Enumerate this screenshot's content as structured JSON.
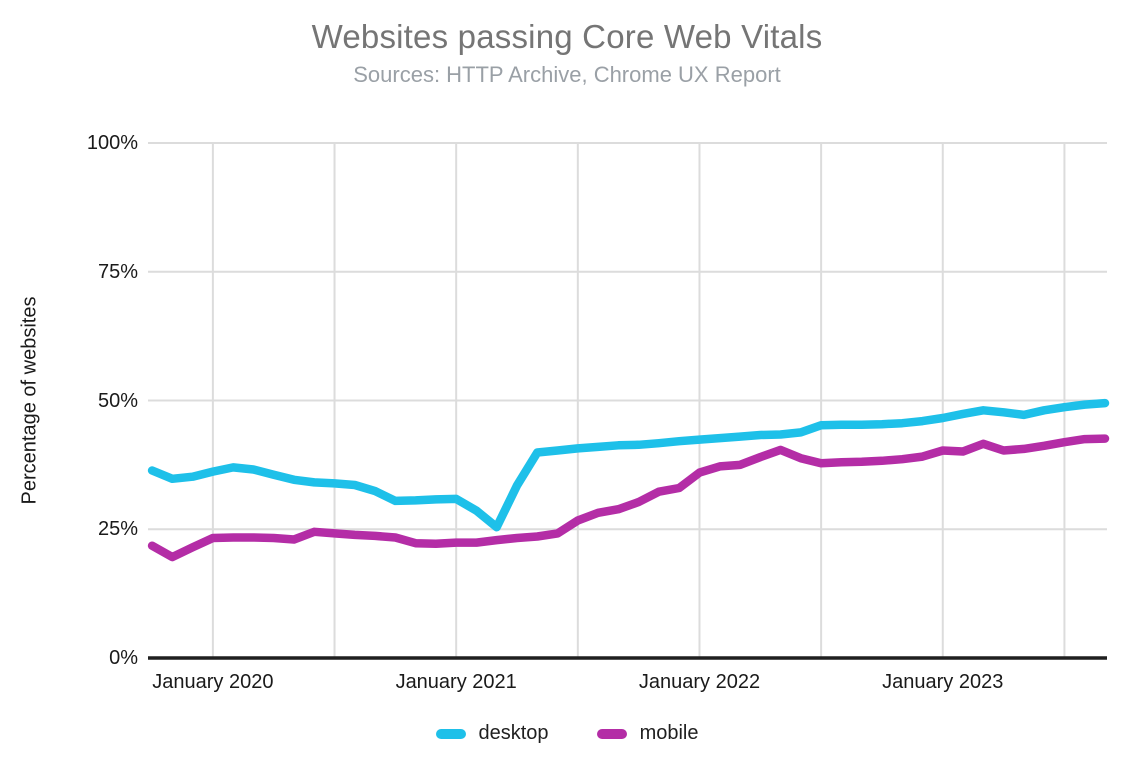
{
  "header": {
    "title": "Websites passing Core Web Vitals",
    "subtitle": "Sources: HTTP Archive, Chrome UX Report"
  },
  "chart_data": {
    "type": "line",
    "title": "Websites passing Core Web Vitals",
    "subtitle": "Sources: HTTP Archive, Chrome UX Report",
    "xlabel": "",
    "ylabel": "Percentage of websites",
    "ylim": [
      0,
      100
    ],
    "grid": true,
    "legend_position": "bottom",
    "colors": {
      "desktop": "#1ec0e9",
      "mobile": "#b42da6",
      "gridline": "#dcdcdc",
      "axis_line": "#1f1f1f",
      "title_gray": "#757575",
      "subtitle_gray": "#9aa0a6"
    },
    "y_axis": {
      "ticks": [
        {
          "value": 0,
          "label": "0%"
        },
        {
          "value": 25,
          "label": "25%"
        },
        {
          "value": 50,
          "label": "50%"
        },
        {
          "value": 75,
          "label": "75%"
        },
        {
          "value": 100,
          "label": "100%"
        }
      ]
    },
    "x_axis": {
      "unit": "months relative to January 2020, monthly data Oct 2019 - Sep 2023",
      "domain_months": [
        -3.2,
        44.1
      ],
      "start_month": -3,
      "gridline_months": [
        0,
        6,
        12,
        18,
        24,
        30,
        36,
        42
      ],
      "ticks": [
        {
          "month": 0,
          "label": "January 2020"
        },
        {
          "month": 12,
          "label": "January 2021"
        },
        {
          "month": 24,
          "label": "January 2022"
        },
        {
          "month": 36,
          "label": "January 2023"
        }
      ]
    },
    "series": [
      {
        "name": "desktop",
        "color": "#1ec0e9",
        "values": [
          36.4,
          34.8,
          35.2,
          36.2,
          37.0,
          36.6,
          35.6,
          34.6,
          34.1,
          33.9,
          33.6,
          32.4,
          30.5,
          30.6,
          30.8,
          30.9,
          28.6,
          25.4,
          33.5,
          39.9,
          40.3,
          40.7,
          41.0,
          41.3,
          41.4,
          41.7,
          42.1,
          42.4,
          42.7,
          43.0,
          43.3,
          43.4,
          43.8,
          45.2,
          45.3,
          45.3,
          45.4,
          45.6,
          46.0,
          46.6,
          47.4,
          48.1,
          47.7,
          47.2,
          48.1,
          48.7,
          49.2,
          49.5
        ]
      },
      {
        "name": "mobile",
        "color": "#b42da6",
        "values": [
          21.8,
          19.6,
          21.5,
          23.3,
          23.4,
          23.4,
          23.3,
          23.0,
          24.5,
          24.2,
          23.9,
          23.7,
          23.4,
          22.3,
          22.2,
          22.4,
          22.4,
          22.9,
          23.3,
          23.6,
          24.2,
          26.7,
          28.2,
          28.9,
          30.3,
          32.3,
          33.0,
          36.0,
          37.2,
          37.5,
          39.0,
          40.4,
          38.8,
          37.8,
          38.0,
          38.1,
          38.3,
          38.6,
          39.1,
          40.3,
          40.1,
          41.6,
          40.3,
          40.6,
          41.2,
          41.9,
          42.5,
          42.6
        ]
      }
    ]
  },
  "legend": {
    "items": [
      {
        "label": "desktop",
        "color": "#1ec0e9"
      },
      {
        "label": "mobile",
        "color": "#b42da6"
      }
    ]
  }
}
